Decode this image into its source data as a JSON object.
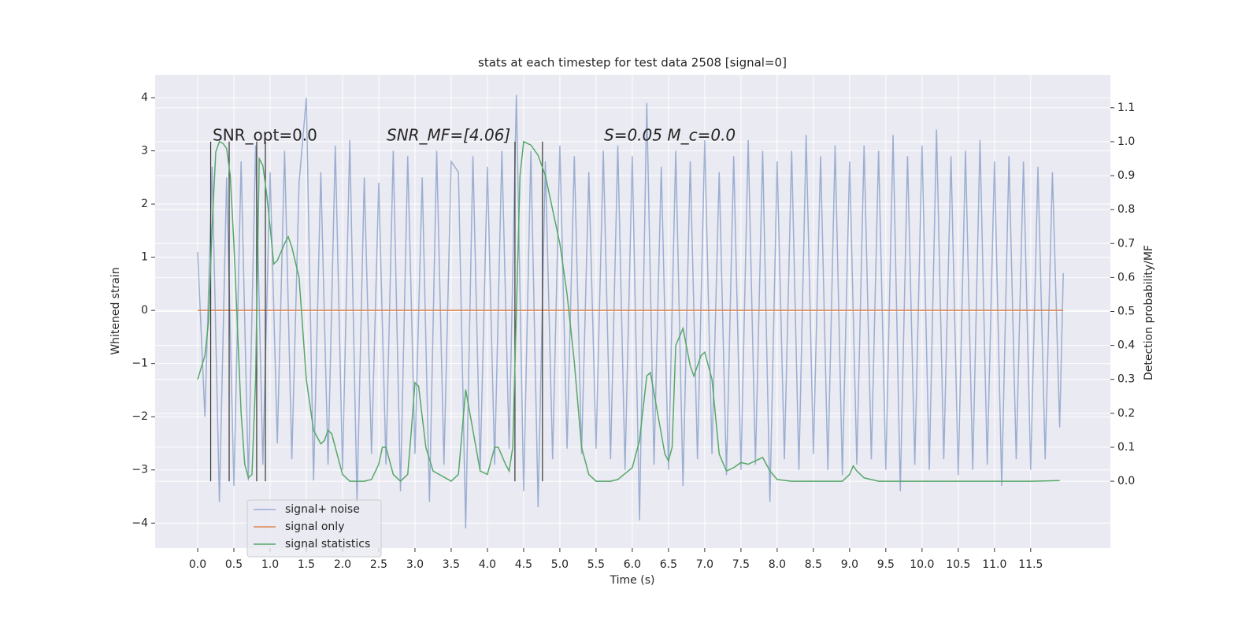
{
  "chart_data": {
    "type": "line",
    "title": "stats at each timestep for test data 2508 [signal=0]",
    "xlabel": "Time (s)",
    "ylabel": "Whitened strain",
    "y2label": "Detection probability/MF",
    "annotations": [
      "SNR_opt=0.0",
      "SNR_MF=[4.06]",
      "S=0.05   M_c=0.0"
    ],
    "xlim": [
      -0.587,
      12.6
    ],
    "ylim": [
      -4.47,
      4.43
    ],
    "y2lim": [
      -0.197,
      1.197
    ],
    "xticks": [
      {
        "value": 0,
        "label": "0.0"
      },
      0.5,
      {
        "value": 1,
        "label": "1.0"
      },
      1.5,
      {
        "value": 2,
        "label": "2.0"
      },
      2.5,
      {
        "value": 3,
        "label": "3.0"
      },
      3.5,
      {
        "value": 4,
        "label": "4.0"
      },
      4.5,
      {
        "value": 5,
        "label": "5.0"
      },
      5.5,
      {
        "value": 6,
        "label": "6.0"
      },
      6.5,
      {
        "value": 7,
        "label": "7.0"
      },
      7.5,
      {
        "value": 8,
        "label": "8.0"
      },
      8.5,
      {
        "value": 9,
        "label": "9.0"
      },
      9.5,
      {
        "value": 10,
        "label": "10.0"
      },
      10.5,
      {
        "value": 11,
        "label": "11.0"
      },
      11.5
    ],
    "yticks": [
      {
        "value": -4,
        "label": "−4"
      },
      {
        "value": -3,
        "label": "−3"
      },
      {
        "value": -2,
        "label": "−2"
      },
      {
        "value": -1,
        "label": "−1"
      },
      0,
      1,
      2,
      3,
      4
    ],
    "y2ticks": [
      {
        "value": 0,
        "label": "0.0"
      },
      0.1,
      0.2,
      0.3,
      0.4,
      0.5,
      0.6,
      0.7,
      0.8,
      0.9,
      {
        "value": 1,
        "label": "1.0"
      },
      1.1
    ],
    "grid": true,
    "legend": "lower left",
    "series": [
      {
        "name": "signal+ noise",
        "color": "#4c72b0",
        "opacity": 0.5,
        "x": [
          0,
          0.1,
          0.2,
          0.3,
          0.4,
          0.5,
          0.6,
          0.7,
          0.8,
          0.9,
          1,
          1.1,
          1.2,
          1.3,
          1.4,
          1.5,
          1.6,
          1.7,
          1.8,
          1.9,
          2,
          2.1,
          2.2,
          2.3,
          2.4,
          2.5,
          2.6,
          2.7,
          2.8,
          2.9,
          3,
          3.1,
          3.2,
          3.3,
          3.4,
          3.5,
          3.6,
          3.7,
          3.8,
          3.9,
          4,
          4.1,
          4.2,
          4.3,
          4.4,
          4.5,
          4.6,
          4.7,
          4.8,
          4.9,
          5,
          5.1,
          5.2,
          5.3,
          5.4,
          5.5,
          5.6,
          5.7,
          5.8,
          5.9,
          6,
          6.1,
          6.2,
          6.3,
          6.4,
          6.5,
          6.6,
          6.7,
          6.8,
          6.9,
          7,
          7.1,
          7.2,
          7.3,
          7.4,
          7.5,
          7.6,
          7.7,
          7.8,
          7.9,
          8,
          8.1,
          8.2,
          8.3,
          8.4,
          8.5,
          8.6,
          8.7,
          8.8,
          8.9,
          9,
          9.1,
          9.2,
          9.3,
          9.4,
          9.5,
          9.6,
          9.7,
          9.8,
          9.9,
          10,
          10.1,
          10.2,
          10.3,
          10.4,
          10.5,
          10.6,
          10.7,
          10.8,
          10.9,
          11,
          11.1,
          11.2,
          11.3,
          11.4,
          11.5,
          11.6,
          11.7,
          11.8,
          11.9,
          11.95
        ],
        "values": [
          1.1,
          -2.0,
          2.7,
          -3.6,
          2.5,
          -3.3,
          2.8,
          -3.2,
          3.1,
          -2.9,
          2.6,
          -2.5,
          3.0,
          -2.8,
          2.4,
          4.0,
          -3.2,
          2.6,
          -2.9,
          3.1,
          -3.0,
          3.2,
          -3.6,
          2.5,
          -2.7,
          2.4,
          -2.9,
          3.0,
          -3.4,
          2.9,
          -2.7,
          2.5,
          -3.6,
          3.0,
          -2.9,
          2.8,
          2.6,
          -4.1,
          2.9,
          -3.0,
          2.7,
          -2.9,
          3.0,
          -2.6,
          4.05,
          -3.4,
          3.0,
          -3.7,
          2.8,
          -2.8,
          3.1,
          -2.6,
          2.9,
          -2.7,
          2.6,
          -2.6,
          3.0,
          -2.8,
          3.1,
          -3.0,
          2.9,
          -3.95,
          3.9,
          -2.9,
          2.7,
          -3.0,
          3.0,
          -3.3,
          2.8,
          -2.8,
          3.2,
          -2.7,
          2.6,
          -3.1,
          2.9,
          -3.0,
          3.2,
          -2.9,
          3.0,
          -3.6,
          2.8,
          -2.8,
          3.0,
          -3.0,
          3.3,
          -2.7,
          2.9,
          -3.0,
          3.1,
          -3.1,
          2.8,
          -2.9,
          3.1,
          -2.8,
          3.0,
          -3.0,
          3.3,
          -3.4,
          2.9,
          -2.9,
          3.1,
          -3.0,
          3.4,
          -2.8,
          2.9,
          -3.1,
          3.0,
          -3.0,
          3.2,
          -2.9,
          2.8,
          -3.3,
          2.9,
          -2.8,
          2.8,
          -3.0,
          2.7,
          -2.8,
          2.6,
          -2.2,
          0.7
        ]
      },
      {
        "name": "signal only",
        "color": "#dd8452",
        "opacity": 1,
        "x": [
          0,
          11.95
        ],
        "values": [
          0,
          0
        ]
      },
      {
        "name": "signal statistics",
        "color": "#55a868",
        "opacity": 1,
        "axis": "y2",
        "x": [
          0,
          0.1,
          0.15,
          0.2,
          0.25,
          0.3,
          0.35,
          0.4,
          0.45,
          0.5,
          0.55,
          0.6,
          0.65,
          0.7,
          0.75,
          0.8,
          0.85,
          0.9,
          0.95,
          1,
          1.05,
          1.1,
          1.2,
          1.25,
          1.3,
          1.4,
          1.5,
          1.6,
          1.7,
          1.75,
          1.8,
          1.85,
          1.9,
          2,
          2.1,
          2.3,
          2.4,
          2.5,
          2.55,
          2.6,
          2.7,
          2.8,
          2.9,
          2.95,
          3,
          3.05,
          3.15,
          3.25,
          3.5,
          3.6,
          3.7,
          3.8,
          3.9,
          4,
          4.1,
          4.15,
          4.25,
          4.3,
          4.35,
          4.45,
          4.5,
          4.6,
          4.7,
          4.8,
          4.9,
          5,
          5.1,
          5.2,
          5.3,
          5.4,
          5.5,
          5.7,
          5.8,
          6,
          6.1,
          6.2,
          6.25,
          6.35,
          6.45,
          6.5,
          6.55,
          6.6,
          6.7,
          6.8,
          6.85,
          6.95,
          7,
          7.1,
          7.2,
          7.3,
          7.4,
          7.5,
          7.6,
          7.8,
          7.9,
          8,
          8.2,
          8.9,
          9,
          9.05,
          9.1,
          9.2,
          9.4,
          11.5,
          11.9
        ],
        "values": [
          0.3,
          0.37,
          0.47,
          0.75,
          0.97,
          1.0,
          0.995,
          0.98,
          0.9,
          0.7,
          0.45,
          0.2,
          0.05,
          0.01,
          0.02,
          0.3,
          0.95,
          0.93,
          0.85,
          0.75,
          0.64,
          0.65,
          0.7,
          0.72,
          0.69,
          0.6,
          0.3,
          0.15,
          0.11,
          0.12,
          0.15,
          0.14,
          0.1,
          0.02,
          0.0,
          0.0,
          0.005,
          0.05,
          0.1,
          0.1,
          0.02,
          0.0,
          0.02,
          0.15,
          0.29,
          0.28,
          0.1,
          0.03,
          0.0,
          0.02,
          0.27,
          0.15,
          0.03,
          0.02,
          0.1,
          0.1,
          0.05,
          0.03,
          0.1,
          0.9,
          1.0,
          0.99,
          0.96,
          0.9,
          0.8,
          0.7,
          0.55,
          0.35,
          0.1,
          0.02,
          0.0,
          0.0,
          0.005,
          0.04,
          0.12,
          0.31,
          0.32,
          0.2,
          0.08,
          0.06,
          0.1,
          0.4,
          0.45,
          0.34,
          0.31,
          0.37,
          0.38,
          0.3,
          0.08,
          0.03,
          0.04,
          0.055,
          0.05,
          0.07,
          0.03,
          0.005,
          0.0,
          0.0,
          0.02,
          0.045,
          0.03,
          0.01,
          0.0,
          0.0,
          0.002
        ]
      }
    ],
    "vlines": {
      "x": [
        0.18,
        0.435,
        0.815,
        0.935,
        4.38,
        4.76
      ],
      "ymin": 0,
      "ymax": 1.0,
      "axis": "y2",
      "color": "#333333"
    }
  }
}
